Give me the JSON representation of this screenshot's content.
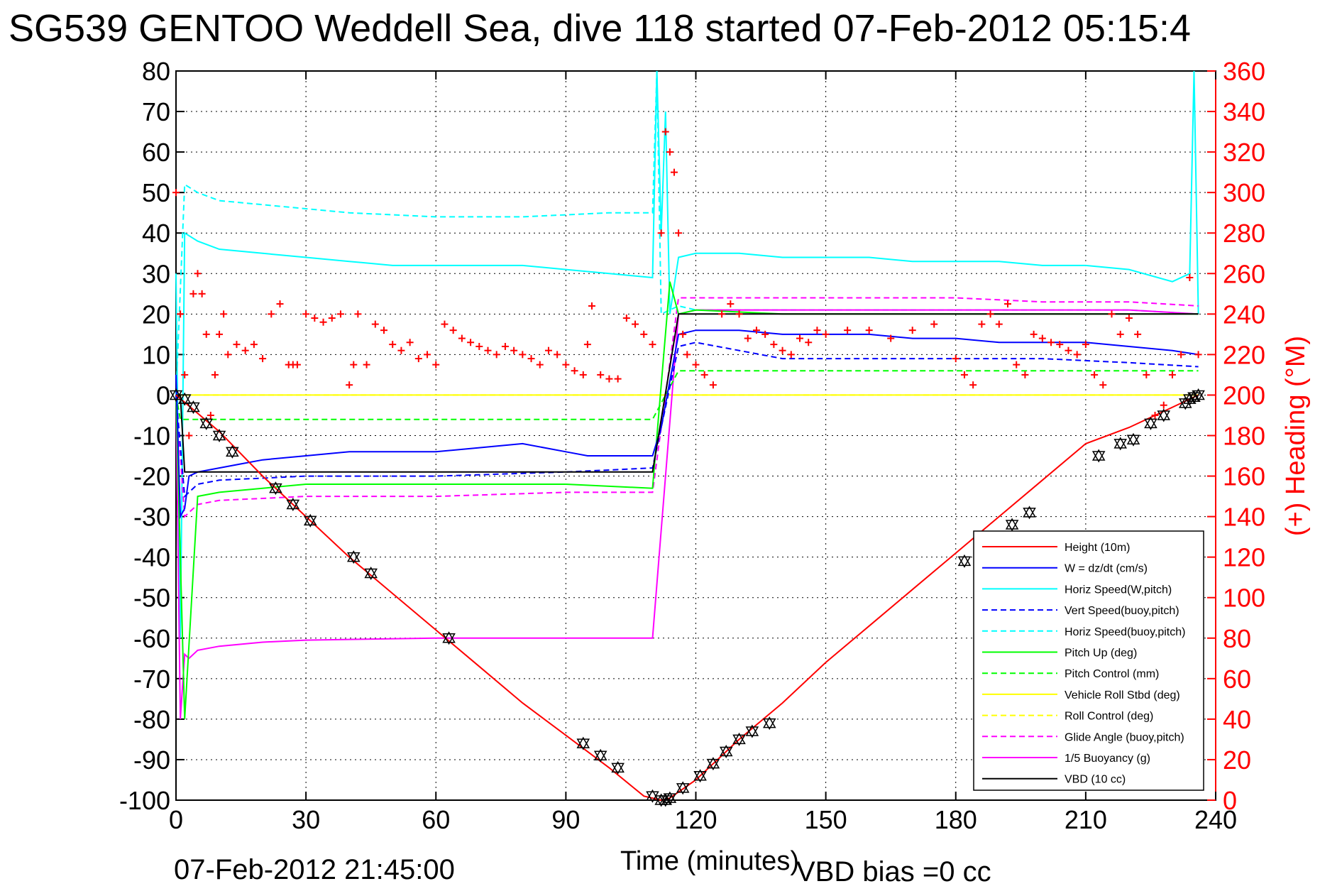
{
  "title": "SG539 GENTOO Weddell Sea, dive 118 started 07-Feb-2012 05:15:4",
  "footer_date": "07-Feb-2012 21:45:00",
  "footer_vbd": "VBD bias =0 cc",
  "chart_data": {
    "type": "line",
    "xlabel": "Time (minutes)",
    "ylabel_left": "",
    "ylabel_right": "(+) Heading (°M)",
    "xlim": [
      0,
      240
    ],
    "ylim_left": [
      -100,
      80
    ],
    "ylim_right": [
      0,
      360
    ],
    "x_ticks": [
      "0",
      "30",
      "60",
      "90",
      "120",
      "150",
      "180",
      "210",
      "240"
    ],
    "y_ticks_left": [
      "80",
      "70",
      "60",
      "50",
      "40",
      "30",
      "20",
      "10",
      "0",
      "-10",
      "-20",
      "-30",
      "-40",
      "-50",
      "-60",
      "-70",
      "-80",
      "-90",
      "-100"
    ],
    "y_ticks_right": [
      "360",
      "340",
      "320",
      "300",
      "280",
      "260",
      "240",
      "220",
      "200",
      "180",
      "160",
      "140",
      "120",
      "100",
      "80",
      "60",
      "40",
      "20",
      "0"
    ],
    "grid": true,
    "legend_position": "bottom-right",
    "colors": {
      "red": "#ff0000",
      "blue": "#0000ff",
      "cyan": "#00ffff",
      "green": "#00ff00",
      "yellow": "#ffff00",
      "magenta": "#ff00ff",
      "black": "#000000"
    },
    "series": [
      {
        "name": "Height (10m)",
        "color": "#ff0000",
        "dash": false,
        "x": [
          0,
          10,
          20,
          30,
          40,
          50,
          60,
          70,
          80,
          90,
          100,
          108,
          112,
          114,
          120,
          130,
          140,
          150,
          160,
          170,
          180,
          190,
          200,
          210,
          220,
          230,
          236
        ],
        "y": [
          0,
          -9,
          -20,
          -30,
          -40,
          -49,
          -58,
          -67,
          -76,
          -84,
          -92,
          -99,
          -100,
          -99.5,
          -95,
          -85,
          -76,
          -66,
          -57,
          -48,
          -39,
          -30,
          -21,
          -12,
          -8,
          -3,
          0
        ]
      },
      {
        "name": "W = dz/dt (cm/s)",
        "color": "#0000ff",
        "dash": false,
        "x": [
          0,
          1,
          2,
          3,
          5,
          10,
          15,
          20,
          30,
          40,
          50,
          60,
          70,
          80,
          90,
          95,
          100,
          110,
          112,
          116,
          120,
          130,
          140,
          150,
          160,
          170,
          180,
          190,
          200,
          210,
          220,
          230,
          236
        ],
        "y": [
          5,
          -30,
          -28,
          -20,
          -19,
          -18,
          -17,
          -16,
          -15,
          -14,
          -14,
          -14,
          -13,
          -12,
          -14,
          -15,
          -15,
          -15,
          -8,
          15,
          16,
          16,
          15,
          15,
          15,
          14,
          14,
          13,
          13,
          13,
          12,
          11,
          10
        ]
      },
      {
        "name": "Horiz Speed(W,pitch)",
        "color": "#00ffff",
        "dash": false,
        "x": [
          0,
          1,
          2,
          5,
          10,
          20,
          30,
          40,
          50,
          60,
          70,
          80,
          90,
          100,
          110,
          111,
          112,
          113,
          114,
          116,
          120,
          130,
          140,
          150,
          160,
          170,
          180,
          190,
          200,
          210,
          220,
          230,
          234,
          235,
          236
        ],
        "y": [
          30,
          -60,
          40,
          38,
          36,
          35,
          34,
          33,
          32,
          32,
          32,
          32,
          31,
          30,
          29,
          80,
          40,
          70,
          20,
          34,
          35,
          35,
          34,
          34,
          34,
          33,
          33,
          33,
          32,
          32,
          31,
          28,
          30,
          80,
          20
        ]
      },
      {
        "name": "Vert Speed(buoy,pitch)",
        "color": "#0000ff",
        "dash": true,
        "x": [
          0,
          2,
          5,
          10,
          30,
          60,
          90,
          110,
          116,
          120,
          140,
          160,
          180,
          200,
          220,
          236
        ],
        "y": [
          0,
          -25,
          -22,
          -21,
          -20,
          -20,
          -19,
          -18,
          12,
          13,
          9,
          9,
          9,
          9,
          8,
          7
        ]
      },
      {
        "name": "Horiz Speed(buoy,pitch)",
        "color": "#00ffff",
        "dash": true,
        "x": [
          0,
          2,
          5,
          10,
          20,
          30,
          40,
          60,
          80,
          100,
          110,
          111,
          112,
          116,
          120,
          140,
          160,
          180,
          200,
          220,
          236
        ],
        "y": [
          0,
          52,
          50,
          48,
          47,
          46,
          45,
          44,
          44,
          45,
          45,
          80,
          20,
          22,
          21,
          21,
          21,
          21,
          21,
          21,
          20
        ]
      },
      {
        "name": "Pitch Up (deg)",
        "color": "#00ff00",
        "dash": false,
        "x": [
          0,
          2,
          5,
          10,
          20,
          30,
          60,
          90,
          110,
          114,
          116,
          120,
          140,
          160,
          180,
          200,
          220,
          236
        ],
        "y": [
          0,
          -80,
          -25,
          -24,
          -23,
          -22,
          -22,
          -22,
          -23,
          28,
          20,
          21,
          20,
          20,
          20,
          20,
          20,
          20
        ]
      },
      {
        "name": "Pitch Control (mm)",
        "color": "#00ff00",
        "dash": true,
        "x": [
          0,
          1,
          5,
          10,
          30,
          60,
          90,
          110,
          116,
          120,
          140,
          160,
          180,
          200,
          220,
          236
        ],
        "y": [
          0,
          -6,
          -6,
          -6,
          -6,
          -6,
          -6,
          -6,
          6,
          6,
          6,
          6,
          6,
          6,
          6,
          6
        ]
      },
      {
        "name": "Vehicle Roll Stbd (deg)",
        "color": "#ffff00",
        "dash": false,
        "x": [
          0,
          5,
          10,
          20,
          30,
          40,
          50,
          60,
          70,
          80,
          90,
          100,
          110,
          116,
          120,
          140,
          160,
          180,
          200,
          220,
          236
        ],
        "y": [
          0,
          0,
          0,
          0,
          0,
          0,
          0,
          0,
          0,
          0,
          0,
          0,
          0,
          0,
          0,
          0,
          0,
          0,
          0,
          0,
          0
        ]
      },
      {
        "name": "Roll Control (deg)",
        "color": "#ffff00",
        "dash": true,
        "x": [
          0,
          30,
          60,
          90,
          110,
          116,
          140,
          180,
          220,
          236
        ],
        "y": [
          0,
          0,
          0,
          0,
          0,
          0,
          0,
          0,
          0,
          0
        ]
      },
      {
        "name": "Glide Angle (buoy,pitch)",
        "color": "#ff00ff",
        "dash": true,
        "x": [
          0,
          2,
          5,
          10,
          30,
          60,
          90,
          110,
          116,
          120,
          140,
          160,
          180,
          200,
          220,
          236
        ],
        "y": [
          0,
          -30,
          -27,
          -26,
          -25,
          -25,
          -24,
          -24,
          24,
          24,
          24,
          24,
          24,
          23,
          23,
          22
        ]
      },
      {
        "name": "1/5 Buoyancy (g)",
        "color": "#ff00ff",
        "dash": false,
        "x": [
          0,
          1,
          2,
          3,
          5,
          10,
          20,
          30,
          60,
          90,
          110,
          116,
          120,
          140,
          160,
          180,
          200,
          220,
          236
        ],
        "y": [
          0,
          -80,
          -64,
          -65,
          -63,
          -62,
          -61,
          -60.5,
          -60,
          -60,
          -60,
          20,
          21,
          21,
          21,
          21,
          21,
          21,
          20
        ]
      },
      {
        "name": "VBD (10 cc)",
        "color": "#000000",
        "dash": false,
        "x": [
          0,
          1,
          2,
          30,
          60,
          90,
          110,
          116,
          140,
          180,
          200,
          220,
          236
        ],
        "y": [
          0,
          0,
          -19,
          -19,
          -19,
          -19,
          -19,
          20,
          20,
          20,
          20,
          20,
          20
        ]
      }
    ],
    "heading_series": {
      "name": "Heading",
      "axis": "right",
      "marker": "+",
      "color": "#ff0000",
      "x": [
        0,
        1,
        2,
        3,
        4,
        5,
        6,
        7,
        8,
        9,
        10,
        11,
        12,
        14,
        16,
        18,
        20,
        22,
        24,
        26,
        27,
        28,
        30,
        32,
        34,
        36,
        38,
        40,
        41,
        42,
        44,
        46,
        48,
        50,
        52,
        54,
        56,
        58,
        60,
        62,
        64,
        66,
        68,
        70,
        72,
        74,
        76,
        78,
        80,
        82,
        84,
        86,
        88,
        90,
        92,
        94,
        95,
        96,
        98,
        100,
        102,
        104,
        106,
        108,
        110,
        112,
        113,
        114,
        115,
        116,
        117,
        118,
        120,
        122,
        124,
        126,
        128,
        130,
        132,
        134,
        136,
        138,
        140,
        142,
        144,
        146,
        148,
        150,
        155,
        160,
        165,
        170,
        175,
        180,
        182,
        184,
        186,
        188,
        190,
        192,
        194,
        196,
        198,
        200,
        202,
        204,
        206,
        208,
        210,
        212,
        214,
        216,
        218,
        220,
        222,
        224,
        226,
        228,
        230,
        232,
        234,
        236
      ],
      "y": [
        300,
        240,
        210,
        180,
        250,
        260,
        250,
        230,
        190,
        210,
        230,
        240,
        220,
        225,
        222,
        225,
        218,
        240,
        245,
        215,
        215,
        215,
        240,
        238,
        236,
        238,
        240,
        205,
        215,
        240,
        215,
        235,
        232,
        225,
        222,
        226,
        218,
        220,
        215,
        235,
        232,
        228,
        226,
        224,
        222,
        220,
        224,
        222,
        220,
        218,
        215,
        222,
        220,
        215,
        212,
        210,
        225,
        244,
        210,
        208,
        208,
        238,
        235,
        230,
        225,
        280,
        330,
        320,
        310,
        280,
        230,
        220,
        215,
        210,
        205,
        240,
        245,
        240,
        228,
        232,
        230,
        225,
        222,
        220,
        228,
        226,
        232,
        230,
        232,
        232,
        228,
        232,
        235,
        218,
        210,
        205,
        235,
        240,
        235,
        245,
        215,
        210,
        230,
        228,
        226,
        225,
        222,
        220,
        225,
        210,
        205,
        240,
        230,
        238,
        230,
        210,
        190,
        195,
        210,
        220,
        258,
        220
      ]
    },
    "marker_points": {
      "marker": "triangle",
      "color": "#000000",
      "x": [
        0,
        2,
        4,
        7,
        10,
        13,
        23,
        27,
        31,
        41,
        45,
        63,
        94,
        98,
        102,
        110,
        112,
        113,
        114,
        117,
        121,
        124,
        127,
        130,
        133,
        137,
        182,
        193,
        197,
        213,
        218,
        221,
        225,
        228,
        233,
        234,
        235,
        236
      ],
      "y": [
        0,
        -1,
        -3,
        -7,
        -10,
        -14,
        -23,
        -27,
        -31,
        -40,
        -44,
        -60,
        -86,
        -89,
        -92,
        -99,
        -100,
        -100,
        -99.5,
        -97,
        -94,
        -91,
        -88,
        -85,
        -83,
        -81,
        -41,
        -32,
        -29,
        -15,
        -12,
        -11,
        -7,
        -5,
        -2,
        -1,
        -0.5,
        0
      ]
    }
  }
}
